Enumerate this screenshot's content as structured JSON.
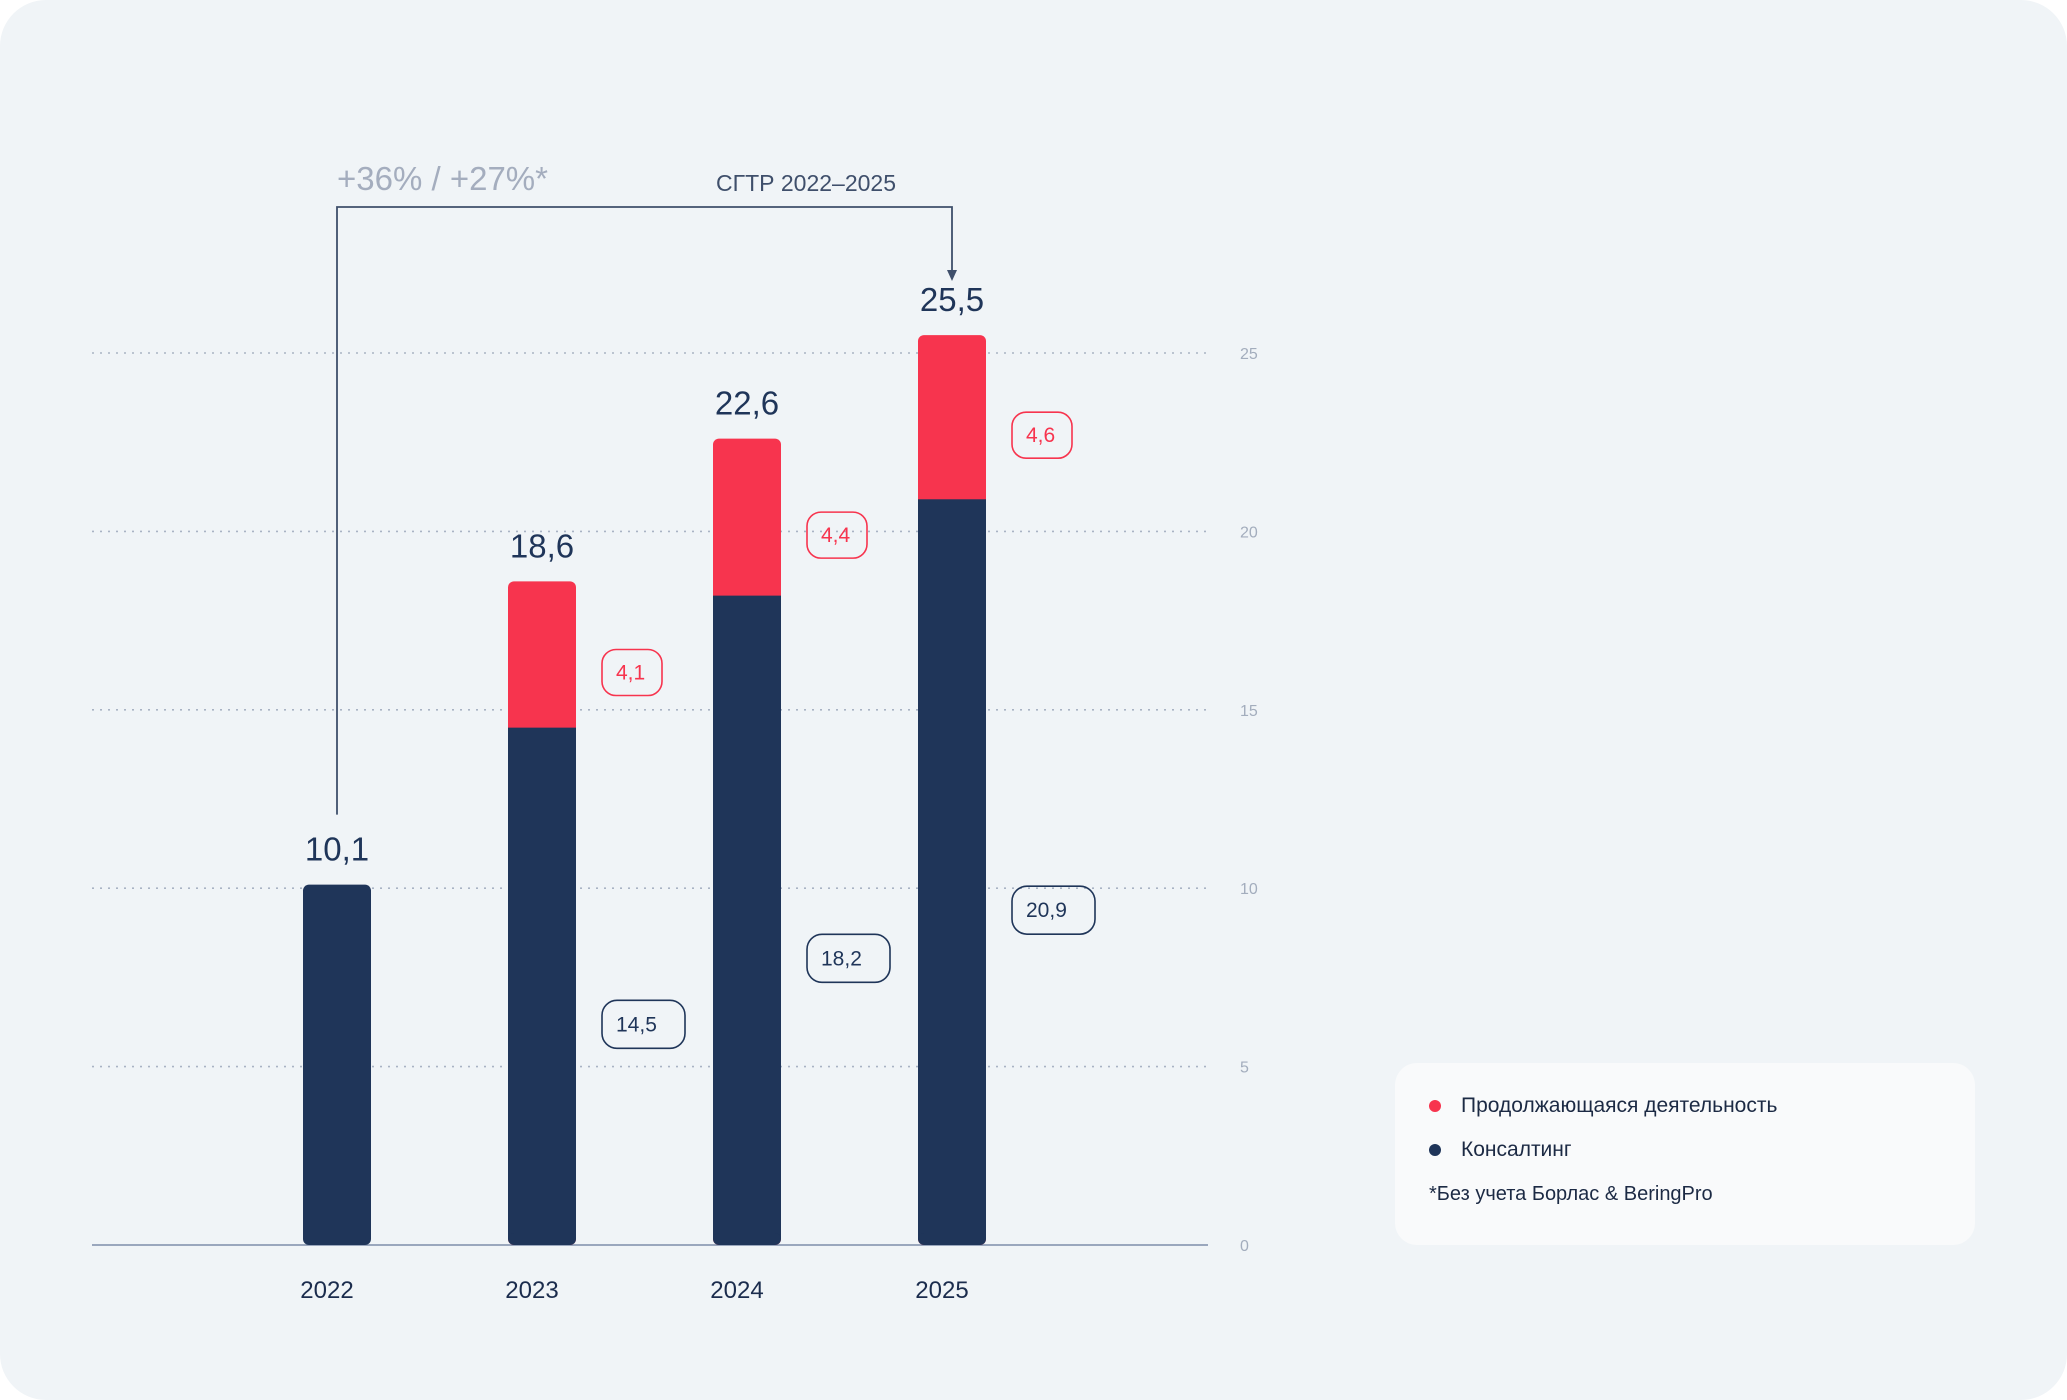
{
  "colors": {
    "background": "#f0f4f7",
    "consulting": "#1f3559",
    "continuing": "#f7344e",
    "legend_bg": "#f9fafb"
  },
  "chart_data": {
    "type": "bar",
    "stacked": true,
    "categories": [
      "2022",
      "2023",
      "2024",
      "2025"
    ],
    "series": [
      {
        "name": "Консалтинг",
        "color": "#1f3559",
        "values": [
          10.1,
          14.5,
          18.2,
          20.9
        ],
        "labels": [
          "",
          "14,5",
          "18,2",
          "20,9"
        ]
      },
      {
        "name": "Продолжающаяся деятельность",
        "color": "#f7344e",
        "values": [
          0,
          4.1,
          4.4,
          4.6
        ],
        "labels": [
          "",
          "4,1",
          "4,4",
          "4,6"
        ]
      }
    ],
    "totals": [
      10.1,
      18.6,
      22.6,
      25.5
    ],
    "total_labels": [
      "10,1",
      "18,6",
      "22,6",
      "25,5"
    ],
    "yticks": [
      0,
      5,
      10,
      15,
      20,
      25
    ],
    "ytick_labels": [
      "0",
      "5",
      "10",
      "15",
      "20",
      "25"
    ],
    "ylim": [
      0,
      25
    ],
    "grid": true,
    "annotation": {
      "growth": "+36% / +27%*",
      "label": "СГТР 2022–2025",
      "from": "2022",
      "to": "2025"
    }
  },
  "legend": {
    "items": [
      {
        "label": "Продолжающаяся деятельность",
        "color": "#f7344e"
      },
      {
        "label": "Консалтинг",
        "color": "#1f3559"
      }
    ],
    "note": "*Без учета Борлас & BeringPro"
  }
}
